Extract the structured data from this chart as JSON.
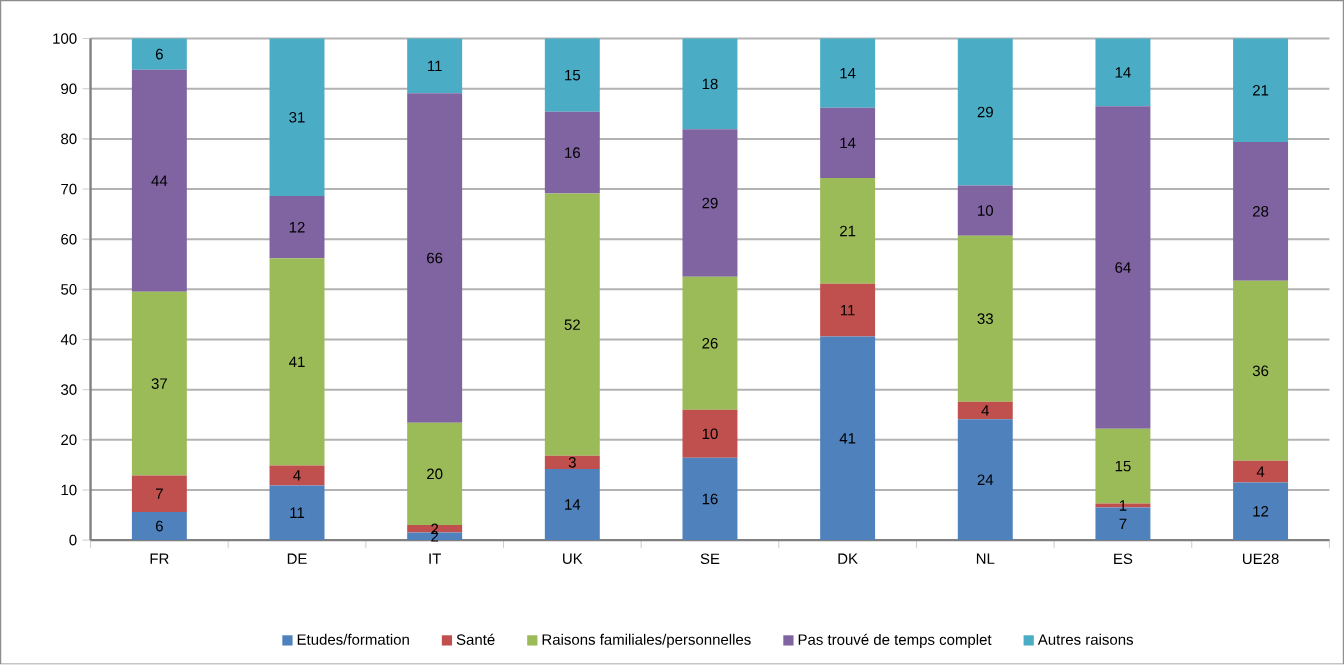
{
  "chart_data": {
    "type": "bar",
    "stacked": true,
    "categories": [
      "FR",
      "DE",
      "IT",
      "UK",
      "SE",
      "DK",
      "NL",
      "ES",
      "UE28"
    ],
    "series": [
      {
        "name": "Etudes/formation",
        "color": "#4f81bd",
        "values": [
          5.6,
          10.9,
          1.5,
          14.2,
          16.4,
          40.6,
          24.1,
          6.5,
          11.5
        ],
        "value_labels": [
          "6",
          "11",
          "2",
          "14",
          "16",
          "41",
          "24",
          "7",
          "12"
        ]
      },
      {
        "name": "Santé",
        "color": "#c0504d",
        "values": [
          7.3,
          4.0,
          1.5,
          2.6,
          9.6,
          10.5,
          3.5,
          0.8,
          4.3
        ],
        "value_labels": [
          "7",
          "4",
          "2",
          "3",
          "10",
          "11",
          "4",
          "1",
          "4"
        ]
      },
      {
        "name": "Raisons familiales/personnelles",
        "color": "#9bbb59",
        "values": [
          36.6,
          41.3,
          20.4,
          52.3,
          26.5,
          21.1,
          33.1,
          14.9,
          35.9
        ],
        "value_labels": [
          "37",
          "41",
          "20",
          "52",
          "26",
          "21",
          "33",
          "15",
          "36"
        ]
      },
      {
        "name": "Pas trouvé de temps complet",
        "color": "#8064a2",
        "values": [
          44.3,
          12.4,
          65.7,
          16.3,
          29.4,
          14.0,
          10.0,
          64.3,
          27.7
        ],
        "value_labels": [
          "44",
          "12",
          "66",
          "16",
          "29",
          "14",
          "10",
          "64",
          "28"
        ]
      },
      {
        "name": "Autres raisons",
        "color": "#4bacc6",
        "values": [
          6.2,
          31.4,
          10.9,
          14.6,
          18.1,
          13.8,
          29.3,
          13.5,
          20.6
        ],
        "value_labels": [
          "6",
          "31",
          "11",
          "15",
          "18",
          "14",
          "29",
          "14",
          "21"
        ]
      }
    ],
    "ylim": [
      0,
      100
    ],
    "yticks": [
      0,
      10,
      20,
      30,
      40,
      50,
      60,
      70,
      80,
      90,
      100
    ],
    "grid": "y",
    "legend": "bottom"
  }
}
